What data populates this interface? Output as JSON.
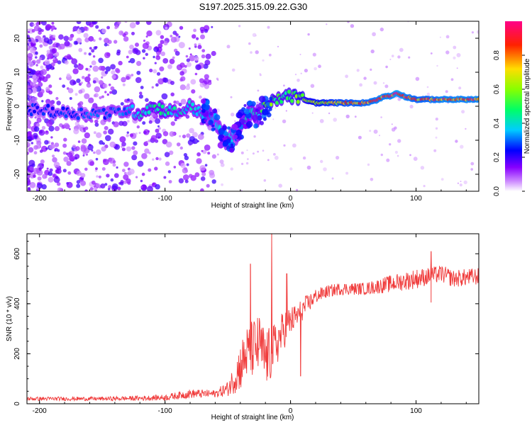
{
  "title": "S197.2025.315.09.22.G30",
  "chart_data": [
    {
      "type": "heatmap",
      "xlabel": "Height of straight line (km)",
      "ylabel": "Frequency (Hz)",
      "xlim": [
        -210,
        150
      ],
      "ylim": [
        -25,
        25
      ],
      "x_ticks": [
        "-200",
        "-100",
        "0",
        "100"
      ],
      "x_tick_values": [
        -200,
        -100,
        0,
        100
      ],
      "y_ticks": [
        "-20",
        "-10",
        "0",
        "10",
        "20"
      ],
      "y_tick_values": [
        -20,
        -10,
        0,
        10,
        20
      ],
      "colorbar": {
        "label": "Normalized spectral amplitude",
        "range": [
          0,
          1
        ],
        "ticks": [
          "0.0",
          "0.2",
          "0.4",
          "0.6",
          "0.8"
        ],
        "tick_values": [
          0.0,
          0.2,
          0.4,
          0.6,
          0.8
        ],
        "colors": [
          "#ffffff",
          "#9900ff",
          "#0000ff",
          "#00ffff",
          "#00ff00",
          "#ffff00",
          "#ff0000",
          "#ff00cc"
        ]
      },
      "ridge": {
        "x": [
          -200,
          -180,
          -160,
          -140,
          -130,
          -120,
          -110,
          -100,
          -90,
          -80,
          -70,
          -60,
          -55,
          -50,
          -45,
          -40,
          -35,
          -30,
          -25,
          -20,
          -15,
          -10,
          -5,
          0,
          10,
          20,
          40,
          60,
          70,
          75,
          80,
          85,
          90,
          100,
          110,
          120,
          130,
          140,
          150
        ],
        "freq": [
          -1,
          -2,
          -2,
          -2,
          -1,
          -2,
          0,
          -1,
          -2,
          0,
          -2,
          -4,
          -8,
          -10,
          -9,
          -6,
          -3,
          -2,
          -2,
          0,
          1,
          2,
          3,
          3,
          2,
          1,
          1,
          1,
          2,
          3,
          3,
          4,
          3,
          2,
          2,
          2,
          2,
          2,
          2
        ],
        "amplitude": [
          0.25,
          0.28,
          0.3,
          0.3,
          0.35,
          0.4,
          0.45,
          0.45,
          0.4,
          0.4,
          0.38,
          0.35,
          0.35,
          0.38,
          0.35,
          0.35,
          0.4,
          0.4,
          0.45,
          0.65,
          0.55,
          0.5,
          0.5,
          0.55,
          0.6,
          0.7,
          0.8,
          0.85,
          0.9,
          0.9,
          0.9,
          0.95,
          0.9,
          0.85,
          0.85,
          0.9,
          0.9,
          0.9,
          0.9
        ]
      }
    },
    {
      "type": "line",
      "series_name": "SNR",
      "color": "#f03c3c",
      "xlabel": "Height of straight line (km)",
      "ylabel": "SNR (10 * v/v)",
      "xlim": [
        -210,
        150
      ],
      "ylim": [
        0,
        680
      ],
      "x_ticks": [
        "-200",
        "-100",
        "0",
        "100"
      ],
      "x_tick_values": [
        -200,
        -100,
        0,
        100
      ],
      "y_ticks": [
        "0",
        "200",
        "400",
        "600"
      ],
      "y_tick_values": [
        0,
        200,
        400,
        600
      ],
      "envelope": {
        "x": [
          -210,
          -150,
          -120,
          -100,
          -80,
          -60,
          -50,
          -45,
          -40,
          -35,
          -30,
          -25,
          -20,
          -15,
          -10,
          -5,
          0,
          5,
          10,
          20,
          30,
          40,
          60,
          80,
          100,
          110,
          120,
          130,
          150
        ],
        "mean": [
          20,
          20,
          22,
          25,
          40,
          40,
          60,
          100,
          150,
          200,
          220,
          230,
          180,
          200,
          250,
          300,
          330,
          350,
          380,
          430,
          450,
          460,
          460,
          480,
          500,
          510,
          520,
          500,
          510
        ],
        "spread": [
          8,
          8,
          10,
          12,
          18,
          15,
          30,
          60,
          100,
          110,
          120,
          130,
          120,
          110,
          90,
          80,
          60,
          50,
          45,
          30,
          25,
          25,
          25,
          35,
          40,
          35,
          35,
          35,
          35
        ]
      },
      "spikes": [
        {
          "x": -32,
          "y": 560
        },
        {
          "x": -24,
          "y": 230
        },
        {
          "x": -15,
          "y": 690
        },
        {
          "x": -3,
          "y": 520
        },
        {
          "x": 8,
          "y": 110
        },
        {
          "x": 112,
          "y": 405
        },
        {
          "x": 112,
          "y": 610
        }
      ]
    }
  ]
}
